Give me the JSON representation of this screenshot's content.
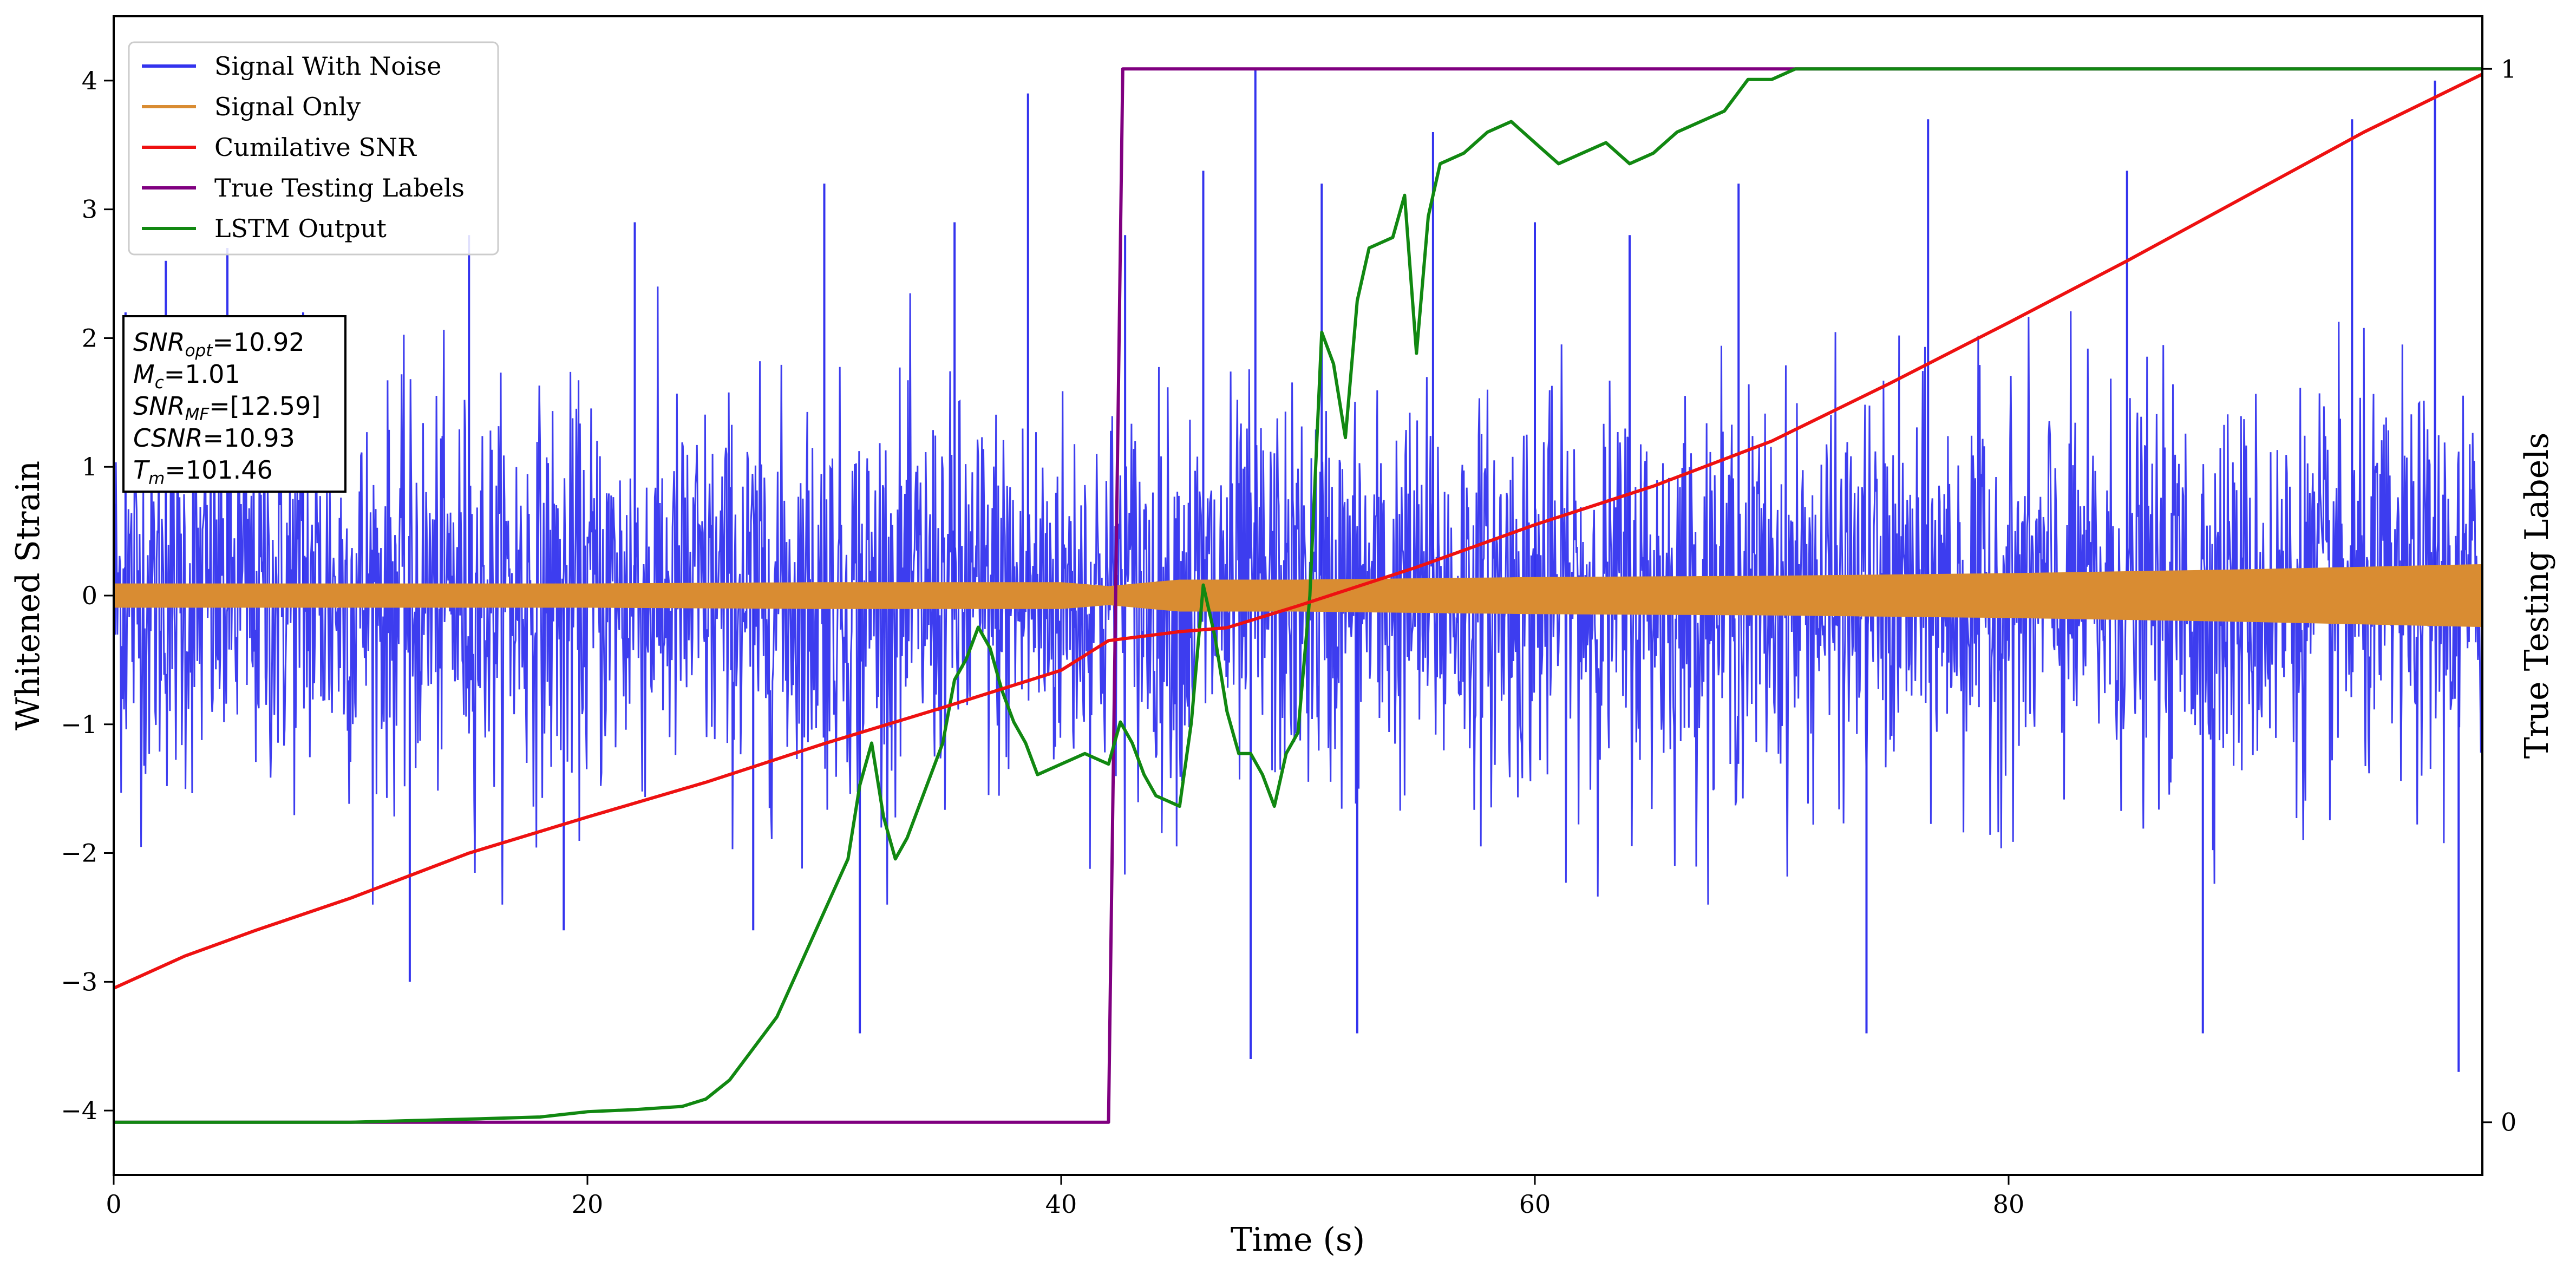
{
  "chart_data": {
    "type": "line",
    "title": "",
    "xlabel": "Time (s)",
    "ylabel": "Whitened Strain",
    "ylabel_right": "True Testing Labels",
    "xlim": [
      0,
      100
    ],
    "ylim": [
      -4.5,
      4.5
    ],
    "ylim_right": [
      -0.05,
      1.05
    ],
    "x_ticks": [
      0,
      20,
      40,
      60,
      80
    ],
    "y_ticks": [
      -4,
      -3,
      -2,
      -1,
      0,
      1,
      2,
      3,
      4
    ],
    "y_ticks_right": [
      0,
      1
    ],
    "grid": false,
    "legend_position": "top-left",
    "colors": {
      "signal_with_noise": "#3333ee",
      "signal_only": "#d98c32",
      "cumulative_snr": "#ee1111",
      "true_labels": "#800080",
      "lstm_output": "#118811"
    },
    "series": [
      {
        "name": "Signal With Noise",
        "axis": "left",
        "description_kind": "noise-band",
        "x_range": [
          0,
          100
        ],
        "typical_amplitude": 1.2,
        "peak_values": [
          {
            "x": 0.5,
            "y": 2.2
          },
          {
            "x": 2.2,
            "y": 2.6
          },
          {
            "x": 4.8,
            "y": 2.7
          },
          {
            "x": 8.0,
            "y": 2.2
          },
          {
            "x": 12.5,
            "y": -3.0
          },
          {
            "x": 15.0,
            "y": 2.8
          },
          {
            "x": 19.0,
            "y": -2.6
          },
          {
            "x": 22.0,
            "y": 2.9
          },
          {
            "x": 27.0,
            "y": -2.6
          },
          {
            "x": 30.0,
            "y": 3.2
          },
          {
            "x": 31.5,
            "y": -3.4
          },
          {
            "x": 35.5,
            "y": 2.9
          },
          {
            "x": 38.6,
            "y": 3.9
          },
          {
            "x": 42.7,
            "y": 2.8
          },
          {
            "x": 46.0,
            "y": 3.3
          },
          {
            "x": 48.2,
            "y": 4.1
          },
          {
            "x": 48.0,
            "y": -3.6
          },
          {
            "x": 51.0,
            "y": 3.2
          },
          {
            "x": 52.5,
            "y": -3.4
          },
          {
            "x": 55.7,
            "y": 3.6
          },
          {
            "x": 60.0,
            "y": 2.9
          },
          {
            "x": 64.0,
            "y": 2.8
          },
          {
            "x": 68.6,
            "y": 3.2
          },
          {
            "x": 74.0,
            "y": -3.4
          },
          {
            "x": 76.6,
            "y": 3.7
          },
          {
            "x": 85.0,
            "y": 3.3
          },
          {
            "x": 88.2,
            "y": -3.4
          },
          {
            "x": 94.5,
            "y": 3.7
          },
          {
            "x": 98.0,
            "y": 4.0
          },
          {
            "x": 99.0,
            "y": -3.7
          }
        ]
      },
      {
        "name": "Signal Only",
        "axis": "left",
        "description_kind": "envelope",
        "x": [
          0,
          10,
          20,
          30,
          40,
          42,
          45,
          50,
          60,
          70,
          80,
          90,
          100
        ],
        "amplitude": [
          0.09,
          0.09,
          0.09,
          0.1,
          0.1,
          0.07,
          0.12,
          0.12,
          0.14,
          0.15,
          0.17,
          0.2,
          0.24
        ]
      },
      {
        "name": "Cumilative SNR",
        "axis": "left",
        "x": [
          0,
          3,
          6,
          10,
          15,
          20,
          25,
          30,
          35,
          40,
          42,
          45,
          47,
          50,
          55,
          60,
          65,
          70,
          75,
          80,
          85,
          90,
          95,
          100
        ],
        "y": [
          -3.05,
          -2.8,
          -2.6,
          -2.35,
          -2.0,
          -1.72,
          -1.45,
          -1.15,
          -0.87,
          -0.58,
          -0.35,
          -0.28,
          -0.25,
          -0.08,
          0.22,
          0.55,
          0.85,
          1.2,
          1.65,
          2.12,
          2.6,
          3.1,
          3.6,
          4.05
        ]
      },
      {
        "name": "True Testing Labels",
        "axis": "right",
        "x": [
          0,
          42.0,
          42.6,
          100
        ],
        "y": [
          0,
          0,
          1,
          1
        ]
      },
      {
        "name": "LSTM Output",
        "axis": "right",
        "x": [
          0,
          10,
          15,
          18,
          20,
          22,
          24,
          25,
          26,
          27,
          28,
          29,
          30,
          31,
          31.5,
          32,
          32.5,
          33,
          33.5,
          34,
          34.5,
          35,
          35.5,
          36,
          36.5,
          37,
          37.5,
          38,
          38.5,
          39,
          40,
          41,
          42,
          42.5,
          43,
          43.5,
          44,
          45,
          45.5,
          46,
          46.5,
          47,
          47.5,
          48,
          48.5,
          49,
          49.5,
          50,
          50.5,
          51,
          51.5,
          52,
          52.5,
          53,
          54,
          54.5,
          55,
          55.5,
          56,
          57,
          58,
          59,
          60,
          61,
          62,
          63,
          64,
          65,
          66,
          67,
          68,
          69,
          70,
          71,
          72,
          73,
          75,
          80,
          85,
          90,
          100
        ],
        "y": [
          0.0,
          0.0,
          0.003,
          0.005,
          0.01,
          0.012,
          0.015,
          0.022,
          0.04,
          0.07,
          0.1,
          0.15,
          0.2,
          0.25,
          0.32,
          0.36,
          0.29,
          0.25,
          0.27,
          0.3,
          0.33,
          0.36,
          0.42,
          0.44,
          0.47,
          0.45,
          0.41,
          0.38,
          0.36,
          0.33,
          0.34,
          0.35,
          0.34,
          0.38,
          0.36,
          0.33,
          0.31,
          0.3,
          0.38,
          0.51,
          0.46,
          0.39,
          0.35,
          0.35,
          0.33,
          0.3,
          0.35,
          0.37,
          0.5,
          0.75,
          0.72,
          0.65,
          0.78,
          0.83,
          0.84,
          0.88,
          0.73,
          0.86,
          0.91,
          0.92,
          0.94,
          0.95,
          0.93,
          0.91,
          0.92,
          0.93,
          0.91,
          0.92,
          0.94,
          0.95,
          0.96,
          0.99,
          0.99,
          1.0,
          1.0,
          1.0,
          1.0,
          1.0,
          1.0,
          1.0,
          1.0
        ]
      }
    ],
    "annotation": {
      "position": "upper-left",
      "lines": [
        {
          "sym": "SNR",
          "sub": "opt",
          "value": "=10.92"
        },
        {
          "sym": "M",
          "sub": "c",
          "value": "=1.01"
        },
        {
          "sym": "SNR",
          "sub": "MF",
          "value": "=[12.59]"
        },
        {
          "sym": "CSNR",
          "sub": "",
          "value": "=10.93"
        },
        {
          "sym": "T",
          "sub": "m",
          "value": "=101.46"
        }
      ]
    }
  }
}
